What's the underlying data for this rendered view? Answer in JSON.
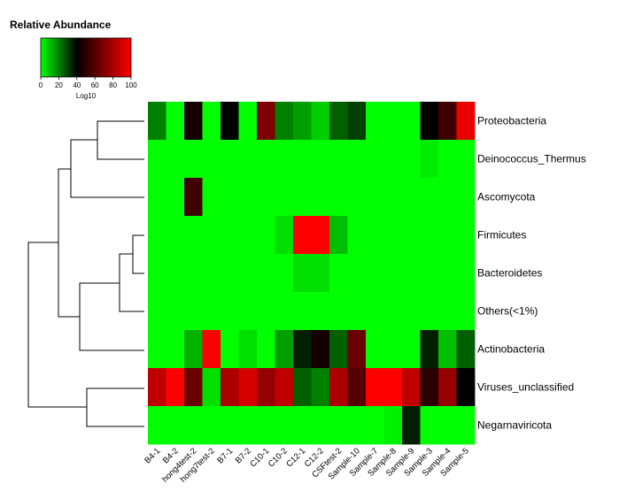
{
  "chart_data": {
    "type": "heatmap",
    "legend": {
      "title": "Relative Abundance",
      "ticks": [
        0,
        20,
        40,
        60,
        80,
        100
      ],
      "label": "Log10",
      "colors": {
        "low": "#00ff00",
        "mid": "#000000",
        "high": "#ff0000"
      }
    },
    "columns": [
      "B4-1",
      "B4-2",
      "hong4test-2",
      "hong7test-2",
      "B7-1",
      "B7-2",
      "C10-1",
      "C10-2",
      "C12-1",
      "C12-2",
      "CSFtest-2",
      "Sample-10",
      "Sample-7",
      "Sample-8",
      "Sample-9",
      "Sample-3",
      "Sample-4",
      "Sample-5"
    ],
    "rows": [
      "Proteobacteria",
      "Deinococcus_Thermus",
      "Ascomycota",
      "Firmicutes",
      "Bacteroidetes",
      "Others(<1%)",
      "Actinobacteria",
      "Viruses_unclassified",
      "Negarnaviricota"
    ],
    "values": [
      [
        20,
        0,
        45,
        0,
        40,
        0,
        70,
        20,
        15,
        8,
        25,
        30,
        0,
        0,
        0,
        40,
        55,
        95
      ],
      [
        0,
        0,
        0,
        0,
        0,
        0,
        0,
        0,
        0,
        0,
        0,
        0,
        0,
        0,
        0,
        3,
        0,
        0
      ],
      [
        0,
        0,
        55,
        0,
        0,
        0,
        0,
        0,
        0,
        0,
        0,
        0,
        0,
        0,
        0,
        0,
        0,
        0
      ],
      [
        0,
        0,
        0,
        0,
        0,
        0,
        0,
        5,
        100,
        100,
        10,
        0,
        0,
        0,
        0,
        0,
        0,
        0
      ],
      [
        0,
        0,
        0,
        0,
        0,
        0,
        0,
        0,
        5,
        5,
        0,
        0,
        0,
        0,
        0,
        0,
        0,
        0
      ],
      [
        0,
        0,
        0,
        0,
        0,
        0,
        0,
        0,
        0,
        0,
        0,
        0,
        0,
        0,
        0,
        0,
        0,
        0
      ],
      [
        0,
        0,
        12,
        100,
        0,
        5,
        0,
        15,
        35,
        45,
        25,
        65,
        0,
        0,
        0,
        35,
        10,
        25
      ],
      [
        85,
        100,
        65,
        5,
        80,
        90,
        75,
        85,
        25,
        20,
        80,
        60,
        100,
        100,
        85,
        50,
        75,
        40
      ],
      [
        0,
        0,
        0,
        0,
        0,
        0,
        0,
        0,
        0,
        0,
        0,
        0,
        0,
        2,
        35,
        0,
        0,
        0
      ]
    ]
  }
}
